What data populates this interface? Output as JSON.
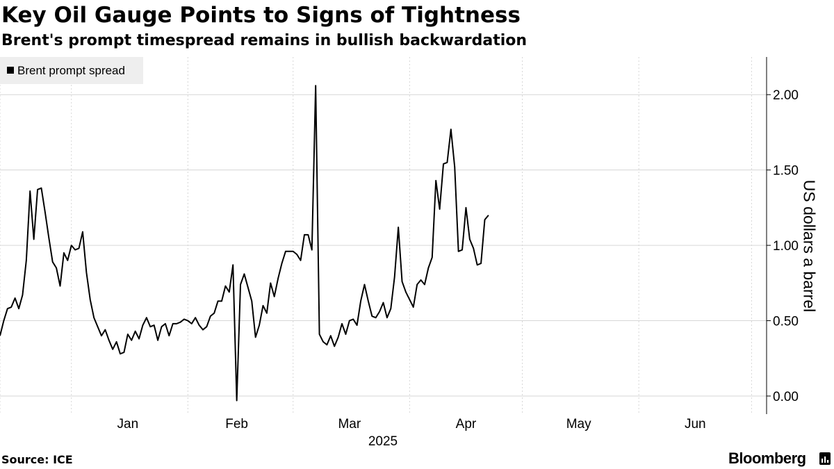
{
  "chart_data": {
    "type": "line",
    "title": "Key Oil Gauge Points to Signs of Tightness",
    "subtitle": "Brent's prompt timespread remains in bullish backwardation",
    "ylabel": "US dollars a barrel",
    "xlabel": "",
    "ylim": [
      -0.12,
      2.25
    ],
    "y_ticks": [
      0,
      0.5,
      1.0,
      1.5,
      2.0
    ],
    "y_tick_labels": [
      "0.00",
      "0.50",
      "1.00",
      "1.50",
      "2.00"
    ],
    "x_range": [
      "2024-12-13",
      "2025-07-05"
    ],
    "x_ticks": [
      {
        "label": "Jan",
        "date": "2025-01-16"
      },
      {
        "label": "Feb",
        "date": "2025-02-14"
      },
      {
        "label": "Mar",
        "date": "2025-03-16"
      },
      {
        "label": "Apr",
        "date": "2025-04-16"
      },
      {
        "label": "May",
        "date": "2025-05-16"
      },
      {
        "label": "Jun",
        "date": "2025-06-16"
      }
    ],
    "x_gridlines": [
      "2024-12-13",
      "2025-01-01",
      "2025-02-01",
      "2025-03-01",
      "2025-04-01",
      "2025-05-01",
      "2025-06-01",
      "2025-07-01"
    ],
    "year_label": "2025",
    "grid": true,
    "legend": "top-left",
    "series": [
      {
        "name": "Brent prompt spread",
        "color": "#000000",
        "points": [
          [
            "2024-12-13",
            0.4
          ],
          [
            "2024-12-14",
            0.5
          ],
          [
            "2024-12-15",
            0.58
          ],
          [
            "2024-12-16",
            0.59
          ],
          [
            "2024-12-17",
            0.65
          ],
          [
            "2024-12-18",
            0.58
          ],
          [
            "2024-12-19",
            0.67
          ],
          [
            "2024-12-20",
            0.9
          ],
          [
            "2024-12-21",
            1.36
          ],
          [
            "2024-12-22",
            1.04
          ],
          [
            "2024-12-23",
            1.37
          ],
          [
            "2024-12-24",
            1.38
          ],
          [
            "2024-12-25",
            1.22
          ],
          [
            "2024-12-26",
            1.05
          ],
          [
            "2024-12-27",
            0.89
          ],
          [
            "2024-12-28",
            0.85
          ],
          [
            "2024-12-29",
            0.73
          ],
          [
            "2024-12-30",
            0.95
          ],
          [
            "2024-12-31",
            0.9
          ],
          [
            "2025-01-01",
            1.0
          ],
          [
            "2025-01-02",
            0.97
          ],
          [
            "2025-01-03",
            0.98
          ],
          [
            "2025-01-04",
            1.09
          ],
          [
            "2025-01-05",
            0.82
          ],
          [
            "2025-01-06",
            0.64
          ],
          [
            "2025-01-07",
            0.52
          ],
          [
            "2025-01-08",
            0.46
          ],
          [
            "2025-01-09",
            0.4
          ],
          [
            "2025-01-10",
            0.44
          ],
          [
            "2025-01-11",
            0.37
          ],
          [
            "2025-01-12",
            0.31
          ],
          [
            "2025-01-13",
            0.36
          ],
          [
            "2025-01-14",
            0.28
          ],
          [
            "2025-01-15",
            0.29
          ],
          [
            "2025-01-16",
            0.41
          ],
          [
            "2025-01-17",
            0.37
          ],
          [
            "2025-01-18",
            0.43
          ],
          [
            "2025-01-19",
            0.38
          ],
          [
            "2025-01-20",
            0.47
          ],
          [
            "2025-01-21",
            0.52
          ],
          [
            "2025-01-22",
            0.46
          ],
          [
            "2025-01-23",
            0.47
          ],
          [
            "2025-01-24",
            0.37
          ],
          [
            "2025-01-25",
            0.46
          ],
          [
            "2025-01-26",
            0.48
          ],
          [
            "2025-01-27",
            0.4
          ],
          [
            "2025-01-28",
            0.48
          ],
          [
            "2025-01-29",
            0.48
          ],
          [
            "2025-01-30",
            0.49
          ],
          [
            "2025-01-31",
            0.51
          ],
          [
            "2025-02-01",
            0.5
          ],
          [
            "2025-02-02",
            0.48
          ],
          [
            "2025-02-03",
            0.52
          ],
          [
            "2025-02-04",
            0.47
          ],
          [
            "2025-02-05",
            0.44
          ],
          [
            "2025-02-06",
            0.46
          ],
          [
            "2025-02-07",
            0.53
          ],
          [
            "2025-02-08",
            0.55
          ],
          [
            "2025-02-09",
            0.63
          ],
          [
            "2025-02-10",
            0.63
          ],
          [
            "2025-02-11",
            0.73
          ],
          [
            "2025-02-12",
            0.69
          ],
          [
            "2025-02-13",
            0.87
          ],
          [
            "2025-02-14",
            -0.03
          ],
          [
            "2025-02-15",
            0.74
          ],
          [
            "2025-02-16",
            0.81
          ],
          [
            "2025-02-17",
            0.72
          ],
          [
            "2025-02-18",
            0.63
          ],
          [
            "2025-02-19",
            0.39
          ],
          [
            "2025-02-20",
            0.47
          ],
          [
            "2025-02-21",
            0.6
          ],
          [
            "2025-02-22",
            0.55
          ],
          [
            "2025-02-23",
            0.75
          ],
          [
            "2025-02-24",
            0.66
          ],
          [
            "2025-02-25",
            0.78
          ],
          [
            "2025-02-26",
            0.88
          ],
          [
            "2025-02-27",
            0.96
          ],
          [
            "2025-02-28",
            0.96
          ],
          [
            "2025-03-01",
            0.96
          ],
          [
            "2025-03-02",
            0.94
          ],
          [
            "2025-03-03",
            0.9
          ],
          [
            "2025-03-04",
            1.07
          ],
          [
            "2025-03-05",
            1.07
          ],
          [
            "2025-03-06",
            0.97
          ],
          [
            "2025-03-07",
            2.06
          ],
          [
            "2025-03-08",
            0.41
          ],
          [
            "2025-03-09",
            0.36
          ],
          [
            "2025-03-10",
            0.34
          ],
          [
            "2025-03-11",
            0.4
          ],
          [
            "2025-03-12",
            0.33
          ],
          [
            "2025-03-13",
            0.39
          ],
          [
            "2025-03-14",
            0.48
          ],
          [
            "2025-03-15",
            0.41
          ],
          [
            "2025-03-16",
            0.5
          ],
          [
            "2025-03-17",
            0.51
          ],
          [
            "2025-03-18",
            0.47
          ],
          [
            "2025-03-19",
            0.63
          ],
          [
            "2025-03-20",
            0.74
          ],
          [
            "2025-03-21",
            0.63
          ],
          [
            "2025-03-22",
            0.53
          ],
          [
            "2025-03-23",
            0.52
          ],
          [
            "2025-03-24",
            0.56
          ],
          [
            "2025-03-25",
            0.62
          ],
          [
            "2025-03-26",
            0.52
          ],
          [
            "2025-03-27",
            0.58
          ],
          [
            "2025-03-28",
            0.79
          ],
          [
            "2025-03-29",
            1.12
          ],
          [
            "2025-03-30",
            0.76
          ],
          [
            "2025-03-31",
            0.69
          ],
          [
            "2025-04-01",
            0.64
          ],
          [
            "2025-04-02",
            0.59
          ],
          [
            "2025-04-03",
            0.74
          ],
          [
            "2025-04-04",
            0.77
          ],
          [
            "2025-04-05",
            0.74
          ],
          [
            "2025-04-06",
            0.85
          ],
          [
            "2025-04-07",
            0.92
          ],
          [
            "2025-04-08",
            1.43
          ],
          [
            "2025-04-09",
            1.24
          ],
          [
            "2025-04-10",
            1.54
          ],
          [
            "2025-04-11",
            1.55
          ],
          [
            "2025-04-12",
            1.77
          ],
          [
            "2025-04-13",
            1.52
          ],
          [
            "2025-04-14",
            0.96
          ],
          [
            "2025-04-15",
            0.97
          ],
          [
            "2025-04-16",
            1.25
          ],
          [
            "2025-04-17",
            1.04
          ],
          [
            "2025-04-18",
            0.98
          ],
          [
            "2025-04-19",
            0.87
          ],
          [
            "2025-04-20",
            0.88
          ],
          [
            "2025-04-21",
            1.17
          ],
          [
            "2025-04-22",
            1.2
          ]
        ]
      }
    ],
    "source": "Source: ICE",
    "brand": "Bloomberg"
  }
}
